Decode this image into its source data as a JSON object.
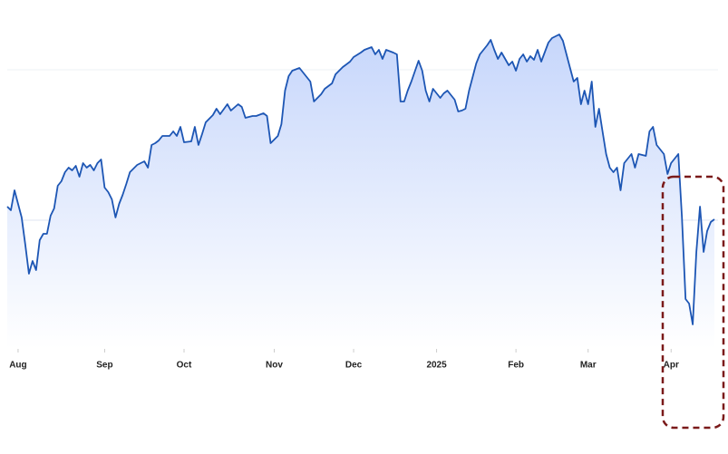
{
  "chart_data": {
    "type": "area",
    "color": "#1d56b4",
    "x": [
      0,
      1,
      2,
      4,
      5,
      6,
      7,
      8,
      9,
      10,
      11,
      12,
      13,
      14,
      15,
      16,
      17,
      18,
      19,
      20,
      21,
      22,
      23,
      24,
      25,
      26,
      27,
      28,
      29,
      30,
      31,
      32,
      33,
      34,
      36,
      38,
      39,
      40,
      41,
      42,
      43,
      45,
      46,
      47,
      48,
      49,
      51,
      52,
      53,
      54,
      55,
      57,
      58,
      59,
      61,
      62,
      64,
      65,
      66,
      68,
      69,
      71,
      72,
      73,
      75,
      76,
      77,
      78,
      79,
      81,
      82,
      84,
      85,
      87,
      88,
      90,
      91,
      93,
      95,
      96,
      98,
      99,
      101,
      102,
      103,
      104,
      105,
      107,
      108,
      109,
      110,
      111,
      112,
      114,
      115,
      116,
      117,
      118,
      120,
      121,
      122,
      124,
      125,
      126,
      127,
      128,
      130,
      131,
      133,
      134,
      135,
      136,
      137,
      139,
      140,
      141,
      142,
      143,
      144,
      145,
      146,
      147,
      148,
      150,
      151,
      153,
      154,
      156,
      157,
      158,
      159,
      160,
      161,
      162,
      163,
      164,
      165,
      166,
      167,
      168,
      169,
      170,
      171,
      173,
      174,
      175,
      177,
      178,
      179,
      180,
      182,
      183,
      184,
      186,
      187,
      188,
      189,
      190,
      191,
      192,
      193,
      194,
      195,
      196
    ],
    "values": [
      172,
      168,
      190,
      160,
      130,
      98,
      112,
      102,
      135,
      142,
      142,
      162,
      170,
      195,
      200,
      210,
      215,
      212,
      217,
      205,
      220,
      215,
      218,
      212,
      220,
      224,
      193,
      188,
      180,
      160,
      175,
      185,
      197,
      210,
      218,
      222,
      215,
      240,
      242,
      245,
      250,
      250,
      255,
      250,
      260,
      243,
      244,
      260,
      240,
      252,
      265,
      273,
      280,
      274,
      285,
      278,
      285,
      282,
      270,
      272,
      272,
      275,
      272,
      242,
      250,
      263,
      300,
      316,
      322,
      325,
      320,
      310,
      288,
      296,
      302,
      308,
      318,
      326,
      332,
      337,
      342,
      345,
      348,
      340,
      345,
      335,
      345,
      342,
      340,
      288,
      288,
      300,
      310,
      333,
      322,
      300,
      288,
      302,
      292,
      297,
      300,
      290,
      277,
      278,
      280,
      300,
      330,
      340,
      350,
      356,
      345,
      335,
      342,
      328,
      332,
      322,
      335,
      340,
      332,
      338,
      334,
      345,
      332,
      353,
      358,
      362,
      355,
      325,
      310,
      314,
      285,
      300,
      285,
      310,
      260,
      280,
      255,
      230,
      215,
      210,
      215,
      190,
      220,
      230,
      215,
      230,
      228,
      255,
      260,
      240,
      230,
      208,
      220,
      230,
      160,
      70,
      65,
      42,
      122,
      172,
      122,
      145,
      155,
      158
    ],
    "xlim": [
      0,
      196
    ],
    "ylim": [
      15,
      380
    ],
    "xticks": [
      {
        "value": 3,
        "label": "Aug"
      },
      {
        "value": 27,
        "label": "Sep"
      },
      {
        "value": 49,
        "label": "Oct"
      },
      {
        "value": 74,
        "label": "Nov"
      },
      {
        "value": 96,
        "label": "Dec"
      },
      {
        "value": 119,
        "label": "2025"
      },
      {
        "value": 141,
        "label": "Feb"
      },
      {
        "value": 161,
        "label": "Mar"
      },
      {
        "value": 184,
        "label": "Apr"
      }
    ]
  }
}
